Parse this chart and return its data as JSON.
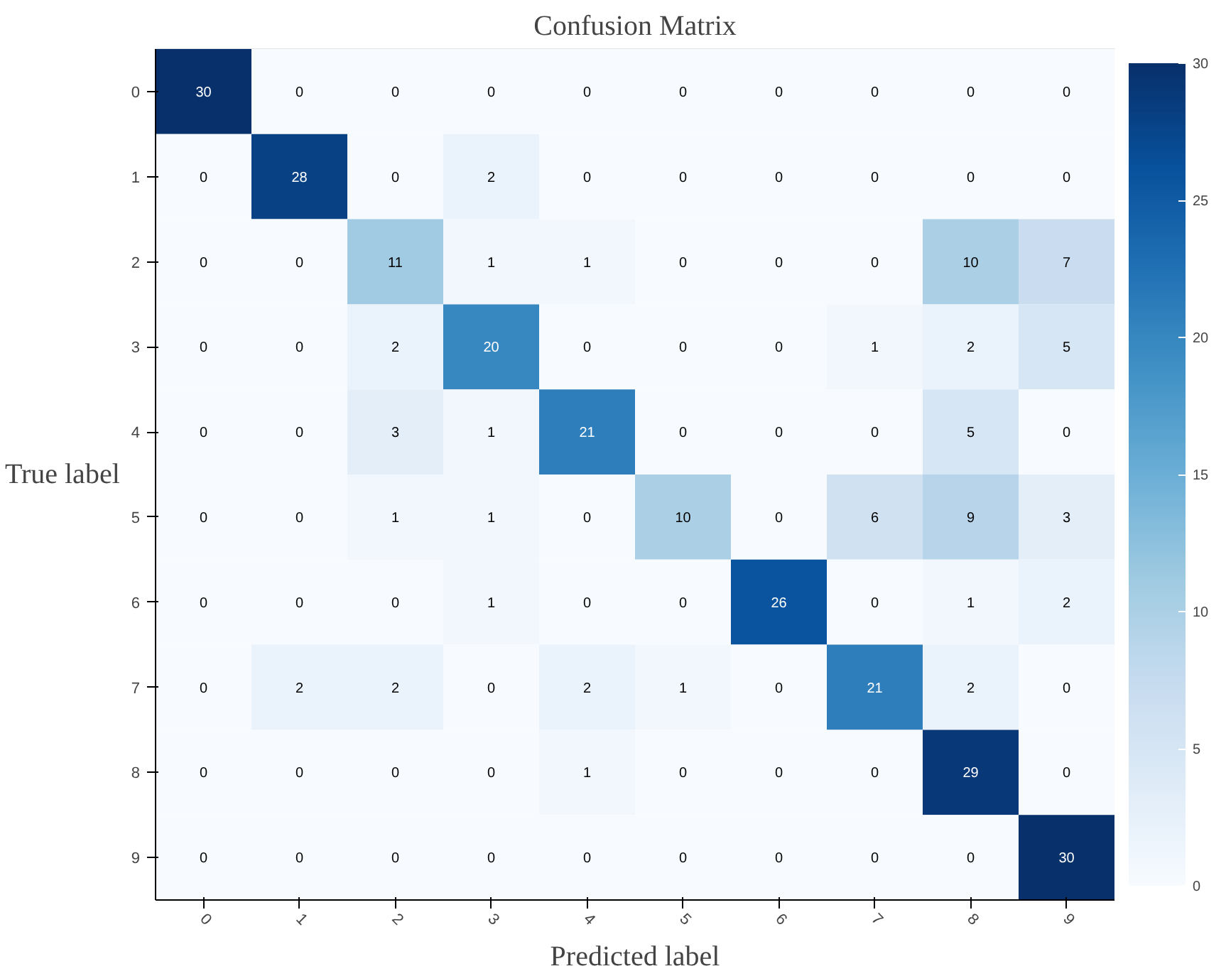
{
  "chart_data": {
    "type": "heatmap",
    "title": "Confusion Matrix",
    "xlabel": "Predicted label",
    "ylabel": "True label",
    "categories": [
      "0",
      "1",
      "2",
      "3",
      "4",
      "5",
      "6",
      "7",
      "8",
      "9"
    ],
    "y_categories": [
      "0",
      "1",
      "2",
      "3",
      "4",
      "5",
      "6",
      "7",
      "8",
      "9"
    ],
    "cells": [
      [
        30,
        0,
        0,
        0,
        0,
        0,
        0,
        0,
        0,
        0
      ],
      [
        0,
        28,
        0,
        2,
        0,
        0,
        0,
        0,
        0,
        0
      ],
      [
        0,
        0,
        11,
        1,
        1,
        0,
        0,
        0,
        10,
        7
      ],
      [
        0,
        0,
        2,
        20,
        0,
        0,
        0,
        1,
        2,
        5
      ],
      [
        0,
        0,
        3,
        1,
        21,
        0,
        0,
        0,
        5,
        0
      ],
      [
        0,
        0,
        1,
        1,
        0,
        10,
        0,
        6,
        9,
        3
      ],
      [
        0,
        0,
        0,
        1,
        0,
        0,
        26,
        0,
        1,
        2
      ],
      [
        0,
        2,
        2,
        0,
        2,
        1,
        0,
        21,
        2,
        0
      ],
      [
        0,
        0,
        0,
        0,
        1,
        0,
        0,
        0,
        29,
        0
      ],
      [
        0,
        0,
        0,
        0,
        0,
        0,
        0,
        0,
        0,
        30
      ]
    ],
    "clim": [
      0,
      30
    ],
    "cticks": [
      0,
      5,
      10,
      15,
      20,
      25,
      30
    ],
    "data_labels": true
  }
}
